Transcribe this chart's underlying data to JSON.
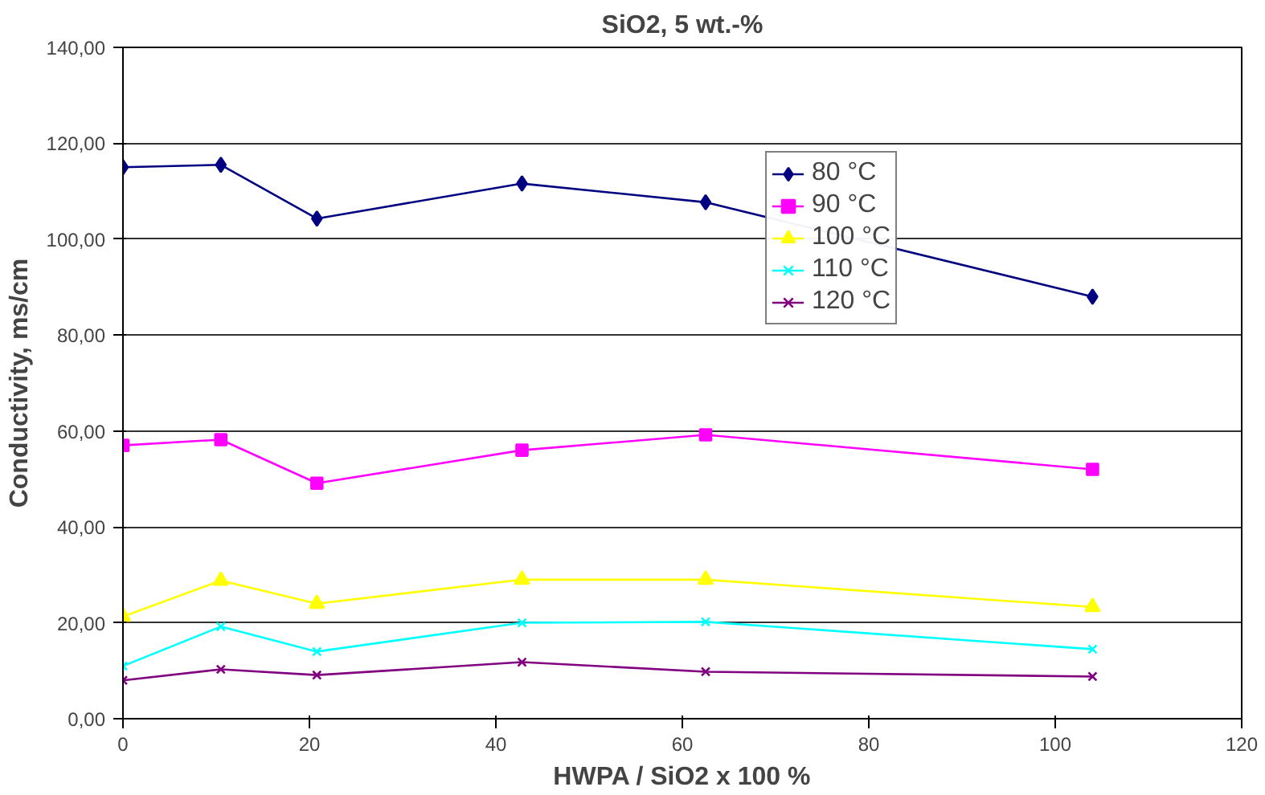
{
  "chart_data": {
    "type": "line",
    "title": "SiO2, 5 wt.-%",
    "xlabel": "HWPA / SiO2 x 100 %",
    "ylabel": "Conductivity, ms/cm",
    "x": [
      0,
      10.5,
      20.8,
      42.8,
      62.5,
      104
    ],
    "series": [
      {
        "name": "80 °C",
        "color": "#000080",
        "marker": "diamond",
        "values": [
          115,
          115.5,
          104.3,
          111.6,
          107.7,
          88
        ]
      },
      {
        "name": "90 °C",
        "color": "#ff00ff",
        "marker": "square",
        "values": [
          57,
          58.2,
          49.1,
          56,
          59.2,
          52
        ]
      },
      {
        "name": "100 °C",
        "color": "#ffff00",
        "marker": "triangle",
        "values": [
          21.3,
          28.8,
          24,
          29,
          29,
          23.3
        ]
      },
      {
        "name": "110 °C",
        "color": "#00ffff",
        "marker": "cross",
        "values": [
          11,
          19.2,
          14,
          20,
          20.2,
          14.5
        ]
      },
      {
        "name": "120 °C",
        "color": "#800080",
        "marker": "cross",
        "values": [
          8,
          10.3,
          9.1,
          11.8,
          9.8,
          8.8
        ]
      }
    ],
    "xlim": [
      0,
      120
    ],
    "xticks": [
      0,
      20,
      40,
      60,
      80,
      100,
      120
    ],
    "ylim": [
      0,
      140
    ],
    "yticks": [
      {
        "value": 0,
        "label": "0,00"
      },
      {
        "value": 20,
        "label": "20,00"
      },
      {
        "value": 40,
        "label": "40,00"
      },
      {
        "value": 60,
        "label": "60,00"
      },
      {
        "value": 80,
        "label": "80,00"
      },
      {
        "value": 100,
        "label": "100,00"
      },
      {
        "value": 120,
        "label": "120,00"
      },
      {
        "value": 140,
        "label": "140,00"
      }
    ],
    "grid": "y",
    "legend": "top right",
    "line_style": "solid"
  }
}
